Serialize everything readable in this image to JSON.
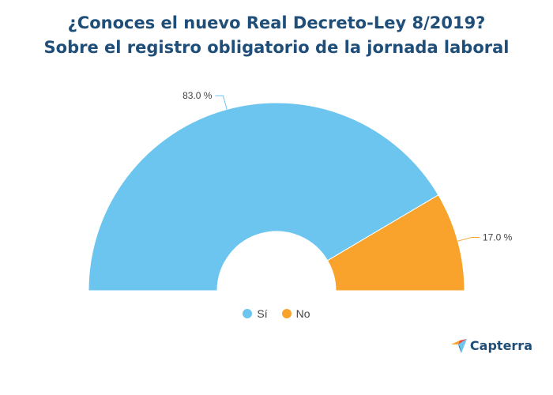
{
  "chart_data": {
    "type": "pie",
    "title": [
      "¿Conoces el nuevo Real Decreto-Ley 8/2019?",
      "Sobre el registro obligatorio de la jornada laboral"
    ],
    "slices": [
      {
        "label": "Sí",
        "value": 83.0,
        "display": "83.0 %",
        "color": "#6cc5ef"
      },
      {
        "label": "No",
        "value": 17.0,
        "display": "17.0 %",
        "color": "#f9a32c"
      }
    ],
    "legend_position": "bottom"
  },
  "brand": {
    "name": "Capterra",
    "colors": [
      "#1f4e79",
      "#f9a32c",
      "#e8483b",
      "#6cc5ef"
    ]
  }
}
